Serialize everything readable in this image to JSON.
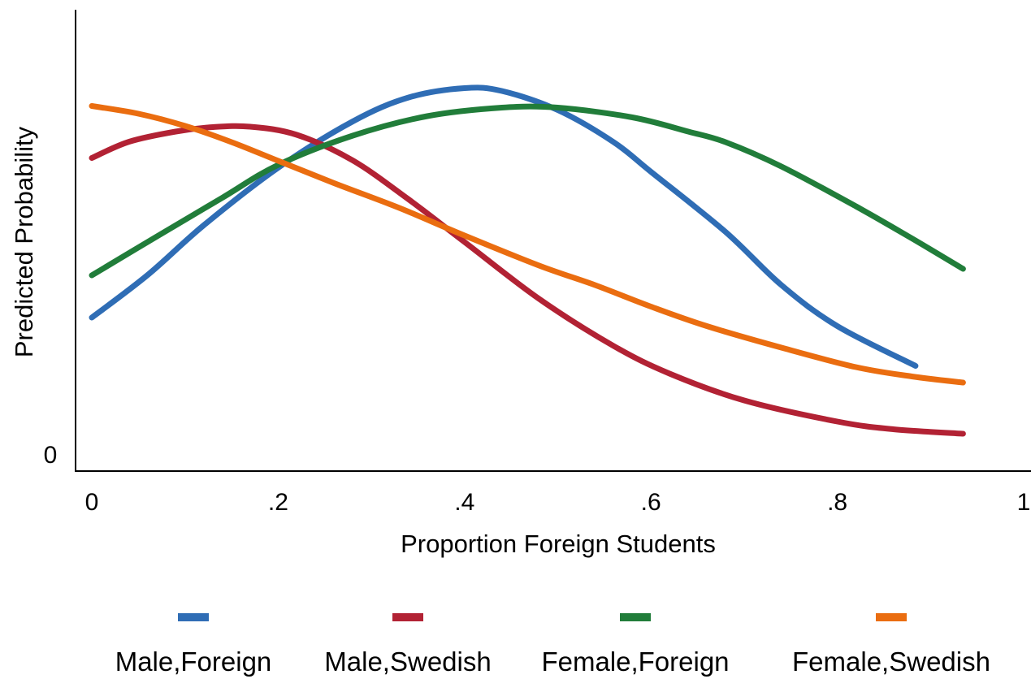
{
  "chart_data": {
    "type": "line",
    "title": "",
    "xlabel": "Proportion Foreign Students",
    "ylabel": "Predicted Probability",
    "xlim": [
      0,
      1
    ],
    "ylim": [
      0,
      1
    ],
    "x_ticks": [
      {
        "value": 0,
        "label": "0"
      },
      {
        "value": 0.2,
        "label": ".2"
      },
      {
        "value": 0.4,
        "label": ".4"
      },
      {
        "value": 0.6,
        "label": ".6"
      },
      {
        "value": 0.8,
        "label": ".8"
      },
      {
        "value": 1,
        "label": "1"
      }
    ],
    "y_ticks": [
      {
        "value": 0,
        "label": "0"
      }
    ],
    "grid": false,
    "legend": "bottom",
    "series": [
      {
        "name": "Male,Foreign",
        "color": "#2F6DB5",
        "points": [
          [
            0,
            0.338
          ],
          [
            0.06,
            0.443
          ],
          [
            0.12,
            0.565
          ],
          [
            0.2,
            0.707
          ],
          [
            0.28,
            0.821
          ],
          [
            0.34,
            0.88
          ],
          [
            0.4,
            0.903
          ],
          [
            0.44,
            0.896
          ],
          [
            0.5,
            0.849
          ],
          [
            0.56,
            0.77
          ],
          [
            0.6,
            0.697
          ],
          [
            0.68,
            0.549
          ],
          [
            0.74,
            0.418
          ],
          [
            0.8,
            0.317
          ],
          [
            0.884,
            0.219
          ]
        ]
      },
      {
        "name": "Male,Swedish",
        "color": "#B22234",
        "points": [
          [
            0,
            0.731
          ],
          [
            0.04,
            0.771
          ],
          [
            0.09,
            0.796
          ],
          [
            0.13,
            0.807
          ],
          [
            0.17,
            0.808
          ],
          [
            0.22,
            0.788
          ],
          [
            0.28,
            0.725
          ],
          [
            0.34,
            0.629
          ],
          [
            0.4,
            0.524
          ],
          [
            0.48,
            0.384
          ],
          [
            0.56,
            0.268
          ],
          [
            0.62,
            0.2
          ],
          [
            0.7,
            0.134
          ],
          [
            0.8,
            0.082
          ],
          [
            0.86,
            0.063
          ],
          [
            0.935,
            0.052
          ]
        ]
      },
      {
        "name": "Female,Foreign",
        "color": "#217D3A",
        "points": [
          [
            0,
            0.442
          ],
          [
            0.07,
            0.538
          ],
          [
            0.14,
            0.633
          ],
          [
            0.2,
            0.714
          ],
          [
            0.28,
            0.786
          ],
          [
            0.36,
            0.834
          ],
          [
            0.44,
            0.855
          ],
          [
            0.5,
            0.855
          ],
          [
            0.58,
            0.831
          ],
          [
            0.64,
            0.796
          ],
          [
            0.68,
            0.77
          ],
          [
            0.74,
            0.71
          ],
          [
            0.82,
            0.612
          ],
          [
            0.88,
            0.533
          ],
          [
            0.935,
            0.458
          ]
        ]
      },
      {
        "name": "Female,Swedish",
        "color": "#EA6D10",
        "points": [
          [
            0,
            0.859
          ],
          [
            0.05,
            0.84
          ],
          [
            0.1,
            0.81
          ],
          [
            0.15,
            0.77
          ],
          [
            0.2,
            0.724
          ],
          [
            0.26,
            0.669
          ],
          [
            0.33,
            0.608
          ],
          [
            0.4,
            0.54
          ],
          [
            0.48,
            0.466
          ],
          [
            0.54,
            0.418
          ],
          [
            0.6,
            0.365
          ],
          [
            0.66,
            0.317
          ],
          [
            0.74,
            0.264
          ],
          [
            0.82,
            0.216
          ],
          [
            0.88,
            0.193
          ],
          [
            0.935,
            0.178
          ]
        ]
      }
    ]
  }
}
